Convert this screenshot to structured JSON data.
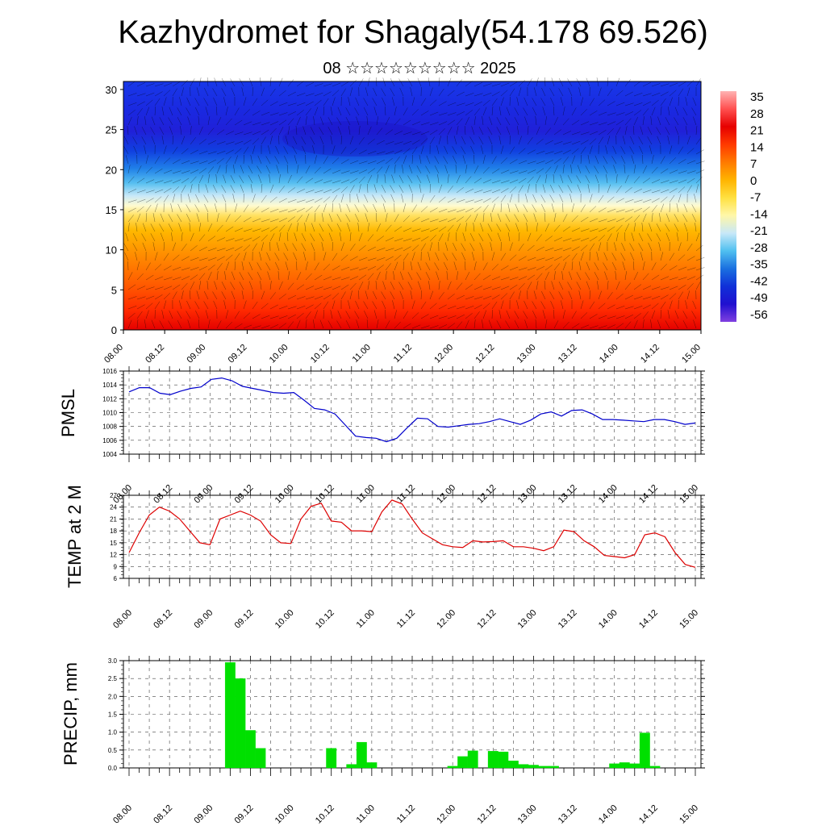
{
  "title": "Kazhydromet for Shagaly(54.178 69.526)",
  "subtitle": "08 ☆☆☆☆☆☆☆☆☆ 2025",
  "time_labels": [
    "08.00",
    "08.12",
    "09.00",
    "09.12",
    "10.00",
    "10.12",
    "11.00",
    "11.12",
    "12.00",
    "12.12",
    "13.00",
    "13.12",
    "14.00",
    "14.12",
    "15.00"
  ],
  "chart_data": [
    {
      "type": "heatmap",
      "name": "cross-section",
      "x": [
        "08.00",
        "08.12",
        "09.00",
        "09.12",
        "10.00",
        "10.12",
        "11.00",
        "11.12",
        "12.00",
        "12.12",
        "13.00",
        "13.12",
        "14.00",
        "14.12",
        "15.00"
      ],
      "yticks": [
        0,
        5,
        10,
        15,
        20,
        25,
        30
      ],
      "ylim": [
        0,
        31
      ],
      "colorbar": {
        "labels": [
          "35",
          "28",
          "21",
          "14",
          "7",
          "0",
          "-7",
          "-14",
          "-21",
          "-28",
          "-35",
          "-42",
          "-49",
          "-56"
        ],
        "colors": [
          "#ffb3b3",
          "#ff5050",
          "#e60000",
          "#ff3a00",
          "#ff7a00",
          "#ffb400",
          "#ffe040",
          "#fff7a8",
          "#c8e8f8",
          "#50c0f0",
          "#1a70e0",
          "#1030d8",
          "#2010d0",
          "#8040e0"
        ]
      },
      "grid": false
    },
    {
      "type": "line",
      "ylabel": "PMSL",
      "yticks": [
        1004,
        1006,
        1008,
        1010,
        1012,
        1014,
        1016
      ],
      "ylim": [
        1004,
        1016
      ],
      "color": "#0000cc",
      "series": [
        {
          "values": [
            1013,
            1013.6,
            1013.6,
            1012.8,
            1012.6,
            1013.1,
            1013.5,
            1013.7,
            1014.8,
            1015,
            1014.6,
            1013.8,
            1013.5,
            1013.2,
            1012.9,
            1012.8,
            1012.9,
            1011.8,
            1010.6,
            1010.4,
            1009.8,
            1008.2,
            1006.6,
            1006.4,
            1006.3,
            1005.8,
            1006.3,
            1007.8,
            1009.2,
            1009.1,
            1008,
            1007.9,
            1008.1,
            1008.3,
            1008.4,
            1008.7,
            1009.1,
            1008.7,
            1008.3,
            1008.9,
            1009.8,
            1010.1,
            1009.5,
            1010.3,
            1010.4,
            1009.8,
            1009,
            1009,
            1008.9,
            1008.8,
            1008.7,
            1009,
            1009,
            1008.7,
            1008.3,
            1008.5
          ]
        }
      ]
    },
    {
      "type": "line",
      "ylabel": "TEMP at 2 M",
      "yticks": [
        6,
        9,
        12,
        15,
        18,
        21,
        24,
        27
      ],
      "ylim": [
        6,
        27
      ],
      "color": "#dd0000",
      "series": [
        {
          "values": [
            12.5,
            17.5,
            22,
            24,
            23,
            21,
            18,
            15,
            14.5,
            21,
            22,
            23,
            22,
            20.5,
            17,
            15,
            14.8,
            21,
            24.2,
            25,
            20.5,
            20.2,
            18,
            18,
            17.8,
            22.8,
            25.8,
            24.8,
            21,
            17.5,
            16,
            14.5,
            14,
            13.8,
            15.5,
            15.2,
            15.3,
            15.5,
            14,
            14,
            13.6,
            13,
            14,
            18.2,
            17.8,
            15.5,
            14,
            11.8,
            11.5,
            11.2,
            12,
            17,
            17.5,
            16.5,
            12.5,
            9.5,
            8.8
          ]
        }
      ]
    },
    {
      "type": "bar",
      "ylabel": "PRECIP, mm",
      "yticks": [
        "0.0",
        "0.5",
        "1.0",
        "1.5",
        "2.0",
        "2.5",
        "3.0"
      ],
      "ylim": [
        0,
        3
      ],
      "color": "#00e000",
      "values": [
        0,
        0,
        0,
        0,
        0,
        0,
        0,
        0,
        0,
        0,
        2.95,
        2.5,
        1.05,
        0.55,
        0,
        0,
        0,
        0,
        0,
        0,
        0.55,
        0,
        0.1,
        0.72,
        0.15,
        0,
        0,
        0,
        0,
        0,
        0,
        0,
        0.05,
        0.32,
        0.48,
        0,
        0.47,
        0.45,
        0.2,
        0.1,
        0.08,
        0.05,
        0.05,
        0,
        0,
        0,
        0,
        0,
        0.12,
        0.15,
        0.12,
        0.98,
        0.05,
        0,
        0,
        0,
        0
      ]
    }
  ]
}
